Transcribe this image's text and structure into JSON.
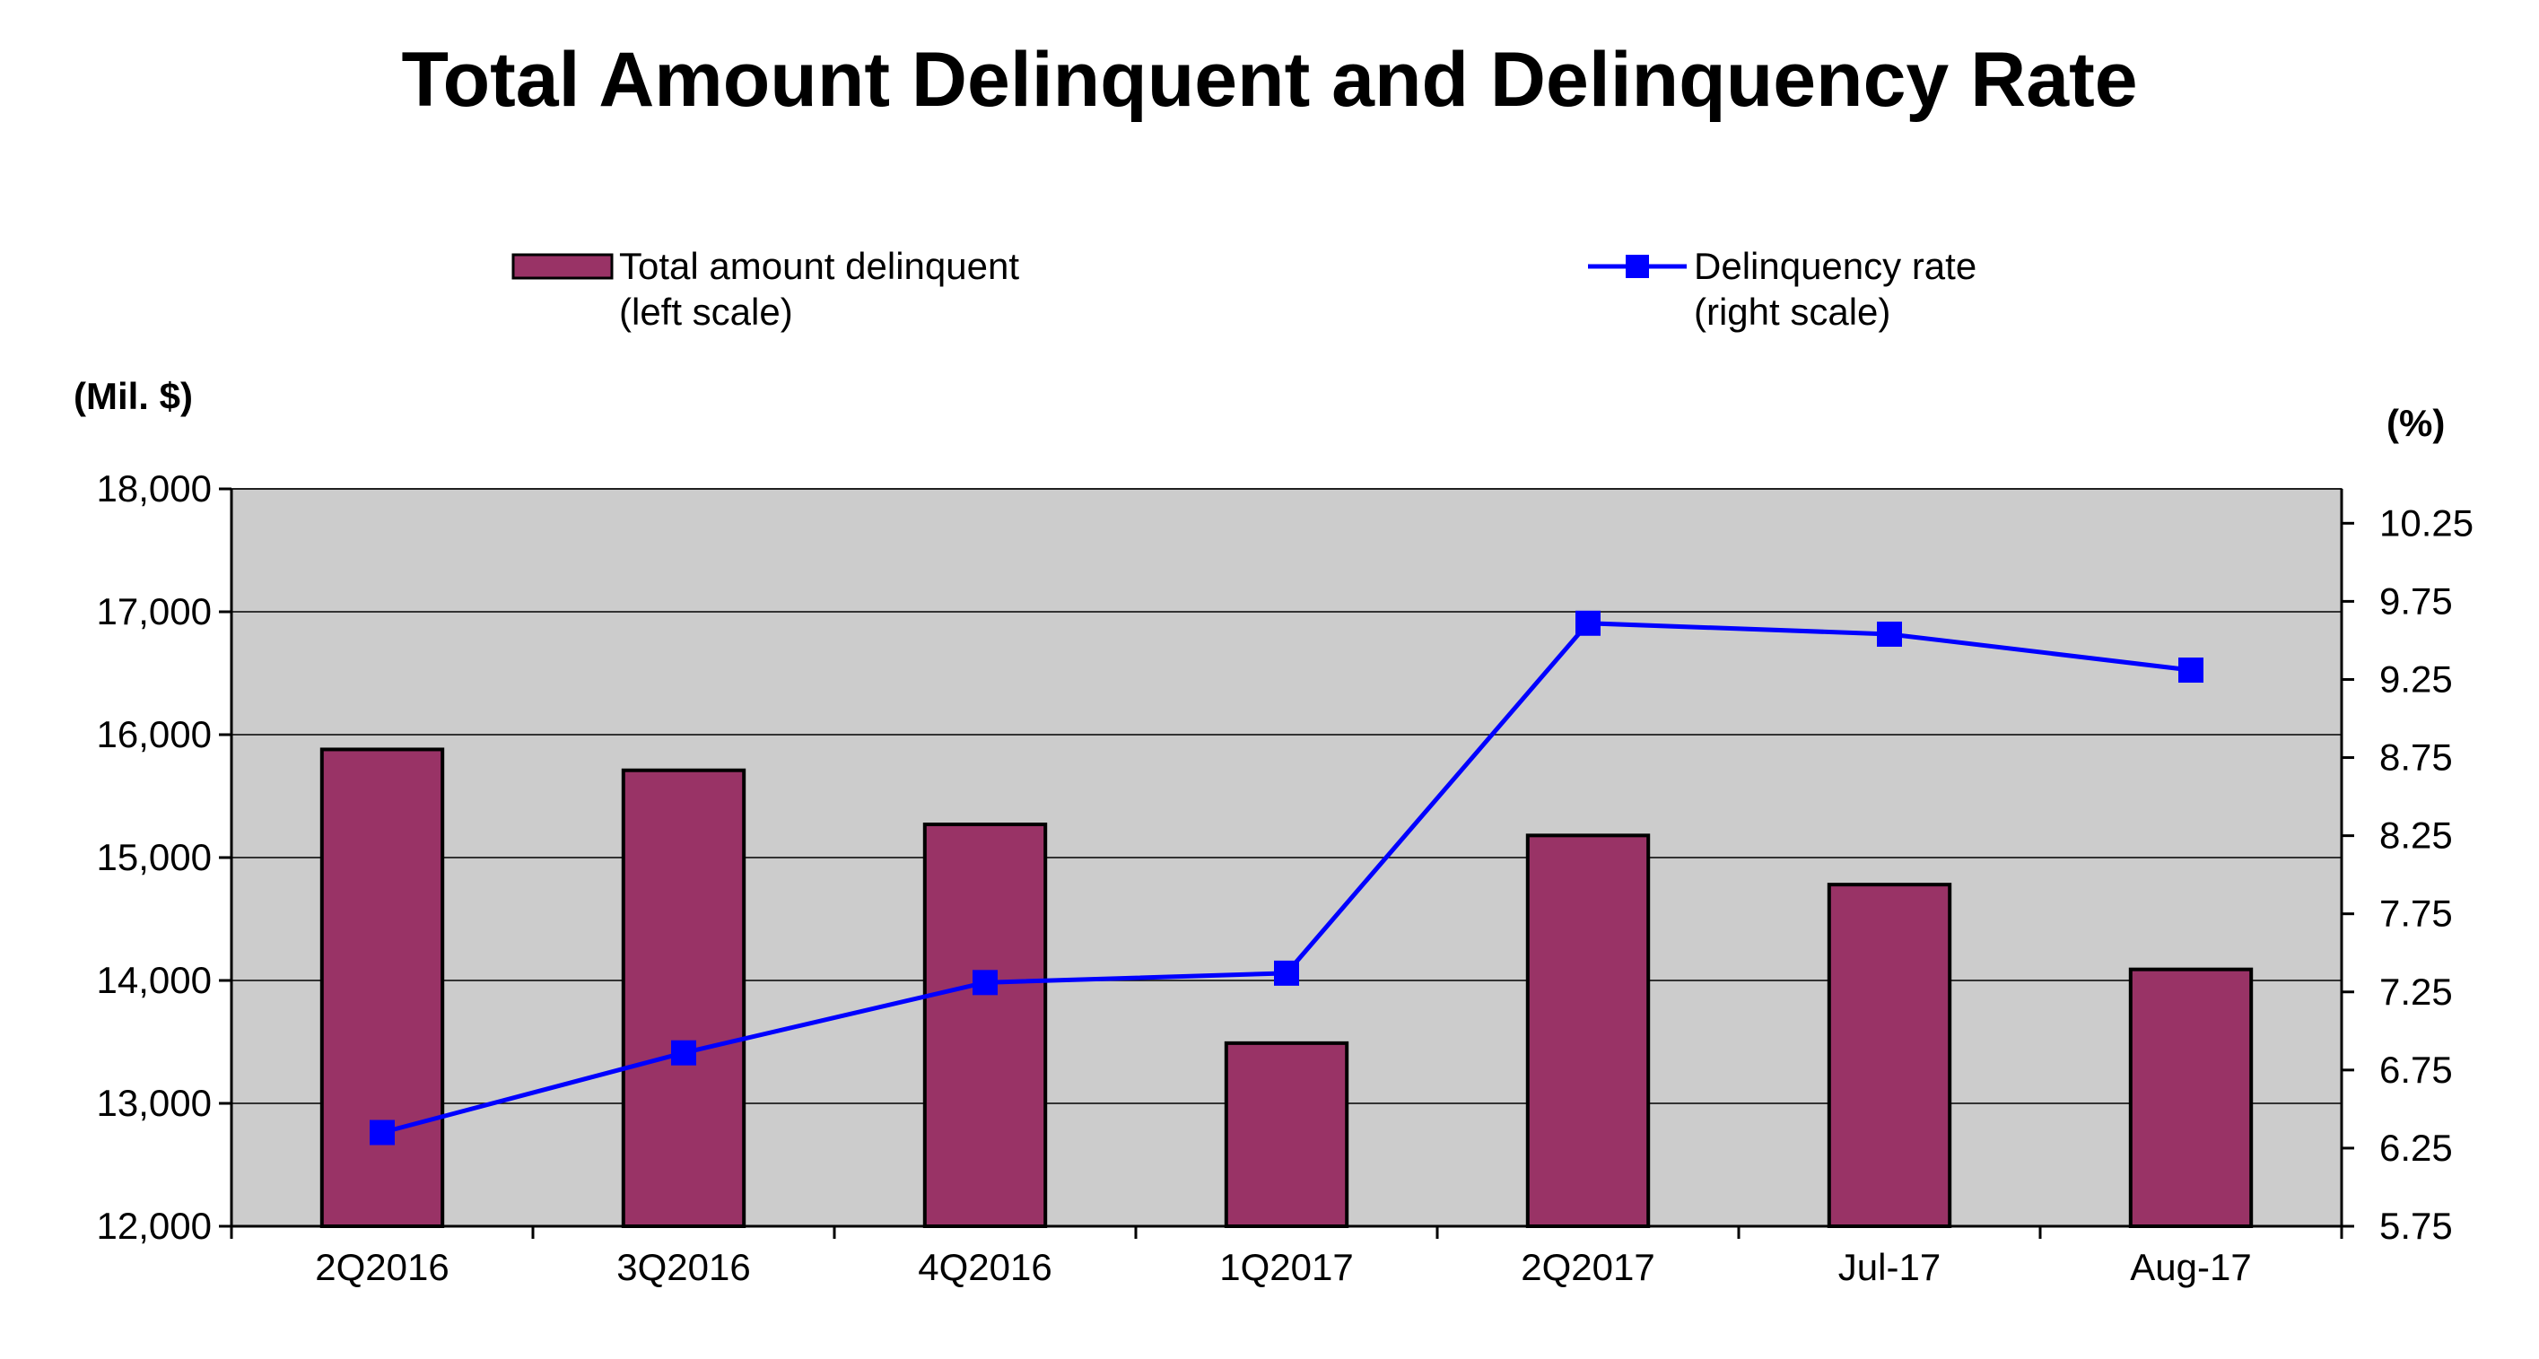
{
  "chart_data": {
    "type": "bar",
    "title": "Total Amount Delinquent and Delinquency Rate",
    "categories": [
      "2Q2016",
      "3Q2016",
      "4Q2016",
      "1Q2017",
      "2Q2017",
      "Jul-17",
      "Aug-17"
    ],
    "series": [
      {
        "name": "Total amount delinquent",
        "name_note": "(left scale)",
        "type": "bar",
        "axis": "left",
        "color": "#993366",
        "values": [
          15880,
          15710,
          15270,
          13490,
          15180,
          14780,
          14090
        ]
      },
      {
        "name": "Delinquency rate",
        "name_note": "(right scale)",
        "type": "line",
        "axis": "right",
        "color": "#0000FF",
        "values": [
          6.35,
          6.86,
          7.31,
          7.37,
          9.61,
          9.54,
          9.31
        ]
      }
    ],
    "left_axis": {
      "unit": "(Mil. $)",
      "ylim": [
        12000,
        18000
      ],
      "ticks": [
        12000,
        13000,
        14000,
        15000,
        16000,
        17000,
        18000
      ],
      "tick_labels": [
        "12,000",
        "13,000",
        "14,000",
        "15,000",
        "16,000",
        "17,000",
        "18,000"
      ]
    },
    "right_axis": {
      "unit": "(%)",
      "ylim": [
        5.75,
        10.47
      ],
      "ticks": [
        5.75,
        6.25,
        6.75,
        7.25,
        7.75,
        8.25,
        8.75,
        9.25,
        9.75,
        10.25
      ],
      "tick_labels": [
        "5.75",
        "6.25",
        "6.75",
        "7.25",
        "7.75",
        "8.25",
        "8.75",
        "9.25",
        "9.75",
        "10.25"
      ]
    },
    "grid": true,
    "plot_background": "#CCCCCC",
    "legend_position": "top"
  }
}
